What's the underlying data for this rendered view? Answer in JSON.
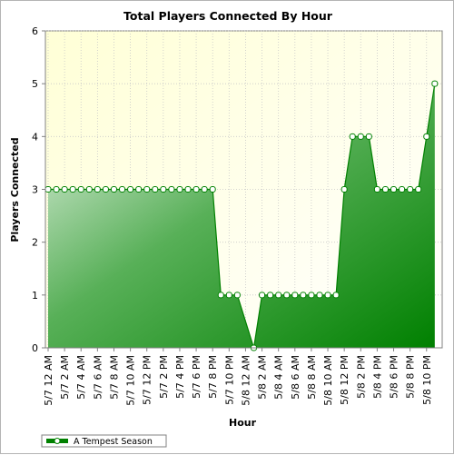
{
  "chart_data": {
    "type": "area",
    "title": "Total Players Connected By Hour",
    "xlabel": "Hour",
    "ylabel": "Players Connected",
    "ylim": [
      0,
      6
    ],
    "yticks": [
      "0",
      "1",
      "2",
      "3",
      "4",
      "5",
      "6"
    ],
    "x_tick_labels": [
      "5/7 12 AM",
      "5/7 2 AM",
      "5/7 4 AM",
      "5/7 6 AM",
      "5/7 8 AM",
      "5/7 10 AM",
      "5/7 12 PM",
      "5/7 2 PM",
      "5/7 4 PM",
      "5/7 6 PM",
      "5/7 8 PM",
      "5/7 10 PM",
      "5/8 12 AM",
      "5/8 2 AM",
      "5/8 4 AM",
      "5/8 6 AM",
      "5/8 8 AM",
      "5/8 10 AM",
      "5/8 12 PM",
      "5/8 2 PM",
      "5/8 4 PM",
      "5/8 6 PM",
      "5/8 8 PM",
      "5/8 10 PM"
    ],
    "grid": true,
    "legend_position": "bottom-left",
    "series": [
      {
        "name": "A Tempest Season",
        "color": "#008000",
        "points": [
          [
            0,
            3
          ],
          [
            1,
            3
          ],
          [
            2,
            3
          ],
          [
            3,
            3
          ],
          [
            4,
            3
          ],
          [
            5,
            3
          ],
          [
            6,
            3
          ],
          [
            7,
            3
          ],
          [
            8,
            3
          ],
          [
            9,
            3
          ],
          [
            10,
            3
          ],
          [
            11,
            3
          ],
          [
            12,
            3
          ],
          [
            13,
            3
          ],
          [
            14,
            3
          ],
          [
            15,
            3
          ],
          [
            16,
            3
          ],
          [
            17,
            3
          ],
          [
            18,
            3
          ],
          [
            19,
            3
          ],
          [
            20,
            3
          ],
          [
            21,
            1
          ],
          [
            22,
            1
          ],
          [
            23,
            1
          ],
          [
            25,
            0
          ],
          [
            26,
            1
          ],
          [
            27,
            1
          ],
          [
            28,
            1
          ],
          [
            29,
            1
          ],
          [
            30,
            1
          ],
          [
            31,
            1
          ],
          [
            32,
            1
          ],
          [
            33,
            1
          ],
          [
            34,
            1
          ],
          [
            35,
            1
          ],
          [
            36,
            3
          ],
          [
            37,
            4
          ],
          [
            38,
            4
          ],
          [
            39,
            4
          ],
          [
            40,
            3
          ],
          [
            41,
            3
          ],
          [
            42,
            3
          ],
          [
            43,
            3
          ],
          [
            44,
            3
          ],
          [
            45,
            3
          ],
          [
            46,
            4
          ],
          [
            47,
            5
          ]
        ]
      }
    ]
  },
  "colors": {
    "plot_background_top": "#ffffe0",
    "area_light": "#eef6ee",
    "area_dark": "#008000",
    "line": "#008000",
    "grid": "#c8c8c8"
  }
}
